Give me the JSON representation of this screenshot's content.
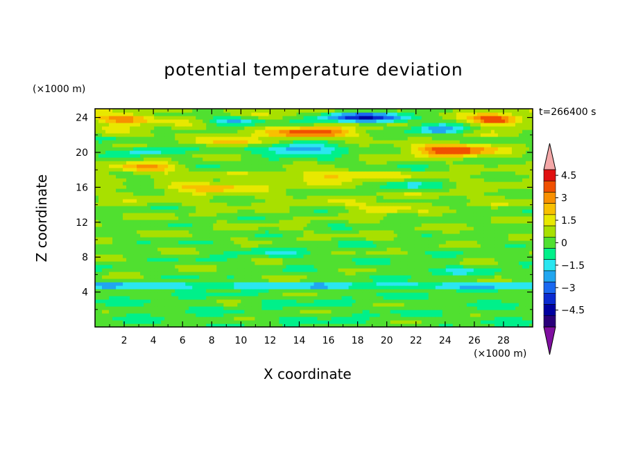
{
  "chart_data": {
    "type": "heatmap",
    "title": "potential temperature deviation",
    "xlabel": "X coordinate",
    "ylabel": "Z coordinate",
    "x_units": "(×1000 m)",
    "y_units": "(×1000 m)",
    "time_label": "t=266400 s",
    "xlim": [
      0,
      30
    ],
    "ylim": [
      0,
      25
    ],
    "x_ticks": [
      "2",
      "4",
      "6",
      "8",
      "10",
      "12",
      "14",
      "16",
      "18",
      "20",
      "22",
      "24",
      "26",
      "28"
    ],
    "y_ticks": [
      "4",
      "8",
      "12",
      "16",
      "20",
      "24"
    ],
    "colorbar": {
      "levels": [
        -5.25,
        -4.5,
        -3.75,
        -3,
        -2.25,
        -1.5,
        -0.75,
        0,
        0.75,
        1.5,
        2.25,
        3,
        3.75,
        4.5,
        5.25
      ],
      "labels": [
        "4.5",
        "3",
        "1.5",
        "0",
        "−1.5",
        "−3",
        "−4.5"
      ],
      "colors": [
        "#7f0fa0",
        "#2a007a",
        "#0000a0",
        "#0a2ad0",
        "#1a68f0",
        "#21a6f0",
        "#2ae6f0",
        "#00f08a",
        "#50e030",
        "#a8e000",
        "#e8e800",
        "#f8c000",
        "#f89000",
        "#f05000",
        "#e01010",
        "#f4a8a8"
      ],
      "extend": "both"
    },
    "fields": {
      "description": "Horizontal layered structure of deviations; warm streaks near z=18, 20-21, 22-24 km; cold blobs near z=20-24 km upper levels",
      "bands": [
        {
          "z": [
            0,
            4.5
          ],
          "value": 0.2
        },
        {
          "z": [
            4.5,
            5.2
          ],
          "value": -1.0
        },
        {
          "z": [
            5.2,
            10
          ],
          "value": 0.4
        },
        {
          "z": [
            10,
            14
          ],
          "value": 0.6
        },
        {
          "z": [
            14,
            18
          ],
          "value": 0.9
        },
        {
          "z": [
            18,
            22
          ],
          "value": 0.5
        },
        {
          "z": [
            22,
            25
          ],
          "value": 1.0
        }
      ],
      "features": [
        {
          "x": 3.5,
          "z": 18.3,
          "sx": 2.2,
          "sz": 0.6,
          "value": 2.6
        },
        {
          "x": 24.5,
          "z": 20.3,
          "sx": 3.0,
          "sz": 0.8,
          "value": 3.8
        },
        {
          "x": 15.0,
          "z": 22.3,
          "sx": 2.5,
          "sz": 0.6,
          "value": 3.4
        },
        {
          "x": 27.5,
          "z": 23.8,
          "sx": 1.6,
          "sz": 0.6,
          "value": 3.6
        },
        {
          "x": 2.0,
          "z": 23.8,
          "sx": 2.0,
          "sz": 0.5,
          "value": 2.8
        },
        {
          "x": 10.0,
          "z": 21.3,
          "sx": 2.5,
          "sz": 0.5,
          "value": 2.2
        },
        {
          "x": 18.5,
          "z": 24.0,
          "sx": 3.5,
          "sz": 0.6,
          "value": -4.2
        },
        {
          "x": 14.0,
          "z": 20.4,
          "sx": 2.5,
          "sz": 0.6,
          "value": -3.2
        },
        {
          "x": 23.5,
          "z": 22.6,
          "sx": 2.0,
          "sz": 0.6,
          "value": -3.0
        },
        {
          "x": 9.5,
          "z": 23.6,
          "sx": 2.0,
          "sz": 0.5,
          "value": -2.6
        },
        {
          "x": 3.5,
          "z": 20.2,
          "sx": 1.8,
          "sz": 0.4,
          "value": -2.0
        },
        {
          "x": 8.0,
          "z": 16.1,
          "sx": 3.0,
          "sz": 0.6,
          "value": 1.9
        },
        {
          "x": 16.5,
          "z": 17.4,
          "sx": 3.0,
          "sz": 0.6,
          "value": 1.8
        },
        {
          "x": 19.5,
          "z": 13.6,
          "sx": 2.0,
          "sz": 0.5,
          "value": 1.8
        },
        {
          "x": 21.5,
          "z": 16.2,
          "sx": 2.0,
          "sz": 0.6,
          "value": -1.6
        },
        {
          "x": 3.0,
          "z": 16.6,
          "sx": 2.0,
          "sz": 0.4,
          "value": -1.0
        },
        {
          "x": 12.0,
          "z": 8.5,
          "sx": 3.0,
          "sz": 0.6,
          "value": -0.8
        },
        {
          "x": 25.0,
          "z": 6.3,
          "sx": 3.5,
          "sz": 0.6,
          "value": -0.7
        }
      ]
    }
  }
}
